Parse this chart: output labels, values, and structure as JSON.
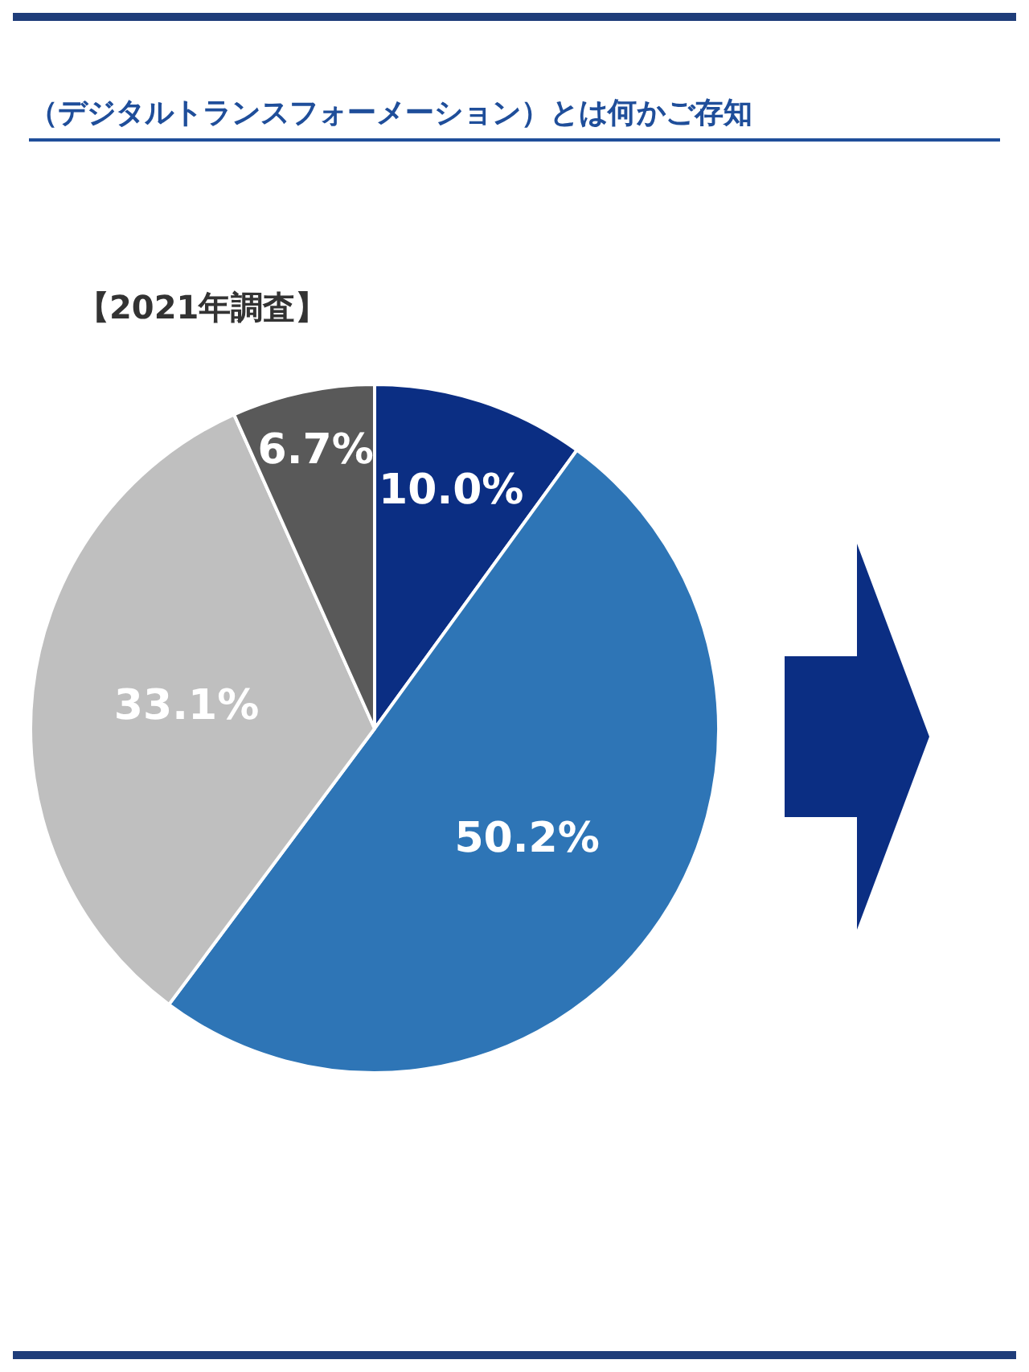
{
  "chart_data": {
    "type": "pie",
    "title": "（デジタルトランスフォーメーション）とは何かご存知",
    "subtitle": "【2021年調査】",
    "categories": [
      null,
      null,
      null,
      null
    ],
    "values": [
      10.0,
      50.2,
      33.1,
      6.7
    ],
    "colors": [
      "#0b2e83",
      "#2e75b6",
      "#bfbfbf",
      "#595959"
    ],
    "value_labels": [
      "10.0%",
      "50.2%",
      "33.1%",
      "6.7%"
    ],
    "legend": false
  }
}
